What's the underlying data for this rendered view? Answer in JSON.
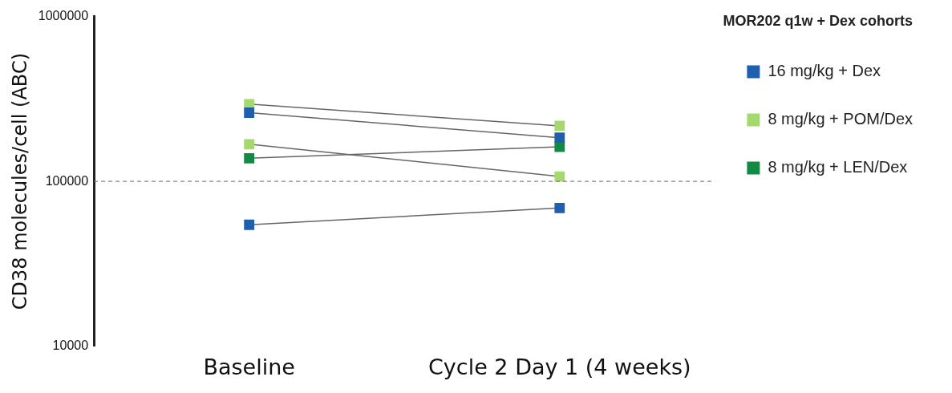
{
  "chart_data": {
    "type": "line",
    "ylabel": "CD38 molecules/cell (ABC)",
    "legend_title": "MOR202 q1w + Dex cohorts",
    "categories": [
      "Baseline",
      "Cycle 2 Day 1 (4 weeks)"
    ],
    "series": [
      {
        "name": "16 mg/kg + Dex",
        "color": "#666666",
        "colors": [
          "#1f5fad",
          "#1f5fad"
        ],
        "values": [
          261000,
          184000
        ]
      },
      {
        "name": "8 mg/kg + POM/Dex",
        "color": "#666666",
        "colors": [
          "#a6d870",
          "#a6d870"
        ],
        "values": [
          294000,
          217000
        ]
      },
      {
        "color": "#666666",
        "colors": [
          "#a6d870",
          "#a6d870"
        ],
        "values": [
          168000,
          107000
        ]
      },
      {
        "name": "8 mg/kg + LEN/Dex",
        "color": "#666666",
        "colors": [
          "#138a44",
          "#138a44"
        ],
        "values": [
          138000,
          162000
        ]
      },
      {
        "color": "#666666",
        "colors": [
          "#1f5fad",
          "#1f5fad"
        ],
        "values": [
          54500,
          68900
        ]
      }
    ],
    "log": true,
    "ylim": [
      10000,
      1000000
    ],
    "yticks": [
      10000,
      100000,
      1000000
    ],
    "ref_lines": [
      {
        "axis": "y",
        "value": 100000,
        "line_style": "dashed",
        "color": "#666666"
      }
    ],
    "marker": "square",
    "line_style": "solid",
    "legend": "right",
    "grid": false
  }
}
